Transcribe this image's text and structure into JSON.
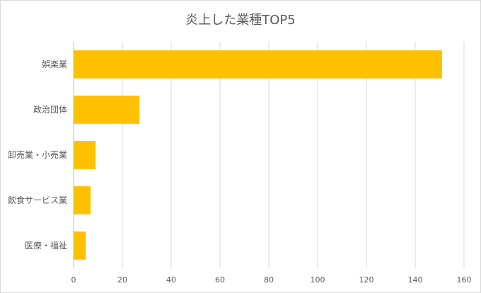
{
  "chart_data": {
    "type": "bar",
    "orientation": "horizontal",
    "title": "炎上した業種TOP5",
    "categories": [
      "娯楽業",
      "政治団体",
      "卸売業・小売業",
      "飲食サービス業",
      "医療・福祉"
    ],
    "values": [
      151,
      27,
      9,
      7,
      5
    ],
    "xlim": [
      0,
      160
    ],
    "xticks": [
      0,
      20,
      40,
      60,
      80,
      100,
      120,
      140,
      160
    ],
    "xlabel": "",
    "ylabel": "",
    "grid": "vertical",
    "legend": "none",
    "bar_color": "#FFC000"
  }
}
